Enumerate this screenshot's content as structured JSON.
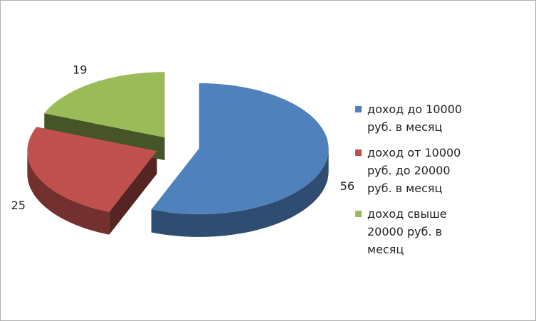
{
  "chart_data": {
    "type": "pie",
    "categories": [
      "доход до 10000 руб. в месяц",
      "доход от 10000 руб. до 20000 руб. в месяц",
      "доход свыше 20000 руб. в месяц"
    ],
    "values": [
      56,
      25,
      19
    ],
    "colors": [
      "#4f81bd",
      "#c0504d",
      "#9bbb59"
    ],
    "legend": "right"
  }
}
